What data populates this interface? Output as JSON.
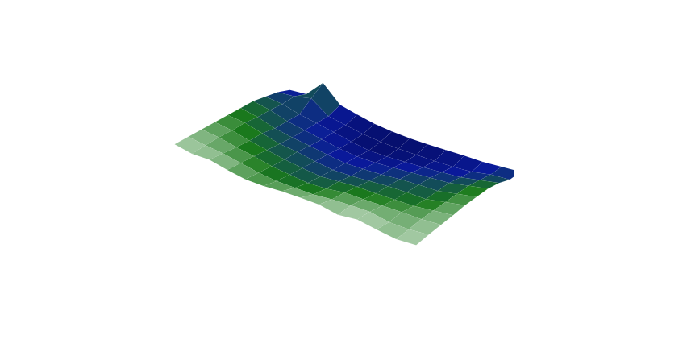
{
  "chart_data": {
    "type": "surface",
    "colors": [
      "#000033",
      "#0a1a9c",
      "#1a7a1a",
      "#ffffff"
    ],
    "zlim": [
      0,
      100
    ],
    "tick_labels": false,
    "grid": false,
    "z": [
      [
        25,
        30,
        70,
        35,
        28,
        22,
        20,
        20,
        22,
        25,
        28,
        30,
        35,
        40
      ],
      [
        40,
        45,
        55,
        30,
        25,
        20,
        18,
        18,
        20,
        22,
        25,
        30,
        40,
        45
      ],
      [
        50,
        48,
        40,
        35,
        30,
        24,
        20,
        22,
        26,
        30,
        35,
        40,
        50,
        60
      ],
      [
        60,
        55,
        45,
        40,
        35,
        30,
        28,
        30,
        35,
        40,
        45,
        50,
        60,
        70
      ],
      [
        65,
        60,
        50,
        45,
        42,
        38,
        35,
        38,
        42,
        48,
        52,
        55,
        65,
        75
      ],
      [
        70,
        68,
        60,
        52,
        50,
        45,
        42,
        45,
        50,
        55,
        58,
        60,
        70,
        80
      ],
      [
        75,
        72,
        65,
        60,
        55,
        52,
        50,
        55,
        60,
        62,
        65,
        68,
        75,
        82
      ],
      [
        80,
        78,
        72,
        68,
        62,
        60,
        58,
        62,
        70,
        72,
        75,
        78,
        80,
        85
      ],
      [
        85,
        82,
        80,
        75,
        70,
        68,
        70,
        72,
        78,
        82,
        85,
        80,
        82,
        88
      ],
      [
        90,
        85,
        88,
        82,
        78,
        80,
        85,
        88,
        90,
        85,
        92,
        88,
        85,
        90
      ]
    ]
  }
}
